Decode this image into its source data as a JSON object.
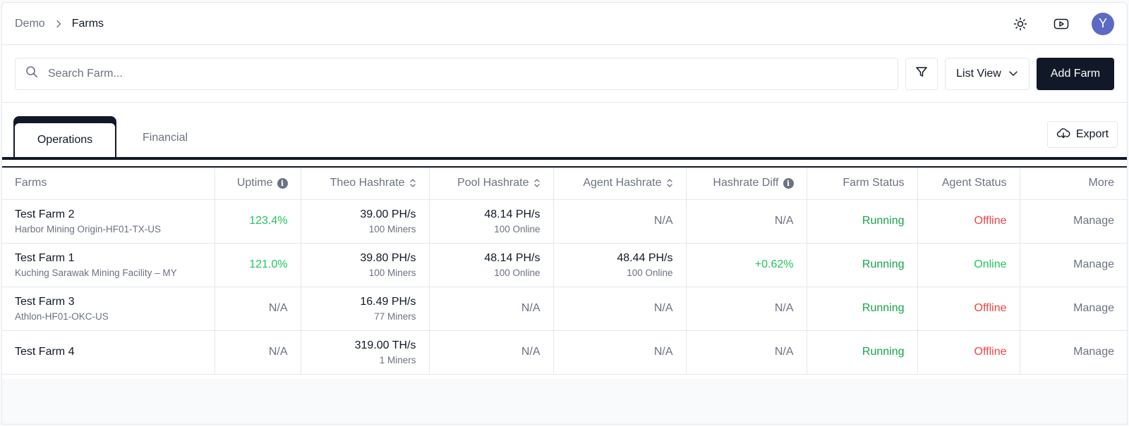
{
  "breadcrumb": {
    "root": "Demo",
    "current": "Farms"
  },
  "header_icons": [
    "sun-icon",
    "youtube-icon"
  ],
  "avatar": {
    "initial": "Y",
    "color": "#5c6ac4"
  },
  "toolbar": {
    "search_placeholder": "Search Farm...",
    "view_label": "List View",
    "add_label": "Add Farm"
  },
  "tabs": {
    "active": "Operations",
    "inactive": "Financial"
  },
  "export_label": "Export",
  "table": {
    "headers": {
      "farms": "Farms",
      "uptime": "Uptime",
      "theo": "Theo Hashrate",
      "pool": "Pool Hashrate",
      "agent": "Agent Hashrate",
      "diff": "Hashrate Diff",
      "farm_status": "Farm Status",
      "agent_status": "Agent Status",
      "more": "More"
    },
    "rows": [
      {
        "name": "Test Farm 2",
        "location": "Harbor Mining Origin-HF01-TX-US",
        "uptime": "123.4%",
        "theo": "39.00 PH/s",
        "theo_sub": "100 Miners",
        "pool": "48.14 PH/s",
        "pool_sub": "100 Online",
        "agent": "N/A",
        "agent_sub": "",
        "diff": "N/A",
        "farm_status": "Running",
        "agent_status": "Offline",
        "more": "Manage"
      },
      {
        "name": "Test Farm 1",
        "location": "Kuching Sarawak Mining Facility – MY",
        "uptime": "121.0%",
        "theo": "39.80 PH/s",
        "theo_sub": "100 Miners",
        "pool": "48.14 PH/s",
        "pool_sub": "100 Online",
        "agent": "48.44 PH/s",
        "agent_sub": "100 Online",
        "diff": "+0.62%",
        "farm_status": "Running",
        "agent_status": "Online",
        "more": "Manage"
      },
      {
        "name": "Test Farm 3",
        "location": "Athlon-HF01-OKC-US",
        "uptime": "N/A",
        "theo": "16.49 PH/s",
        "theo_sub": "77 Miners",
        "pool": "N/A",
        "pool_sub": "",
        "agent": "N/A",
        "agent_sub": "",
        "diff": "N/A",
        "farm_status": "Running",
        "agent_status": "Offline",
        "more": "Manage"
      },
      {
        "name": "Test Farm 4",
        "location": "",
        "uptime": "N/A",
        "theo": "319.00 TH/s",
        "theo_sub": "1 Miners",
        "pool": "N/A",
        "pool_sub": "",
        "agent": "N/A",
        "agent_sub": "",
        "diff": "N/A",
        "farm_status": "Running",
        "agent_status": "Offline",
        "more": "Manage"
      }
    ]
  },
  "colors": {
    "primary": "#111827",
    "muted": "#6b7280",
    "positive": "#22c55e",
    "running": "#16a34a",
    "offline": "#ef4444"
  }
}
